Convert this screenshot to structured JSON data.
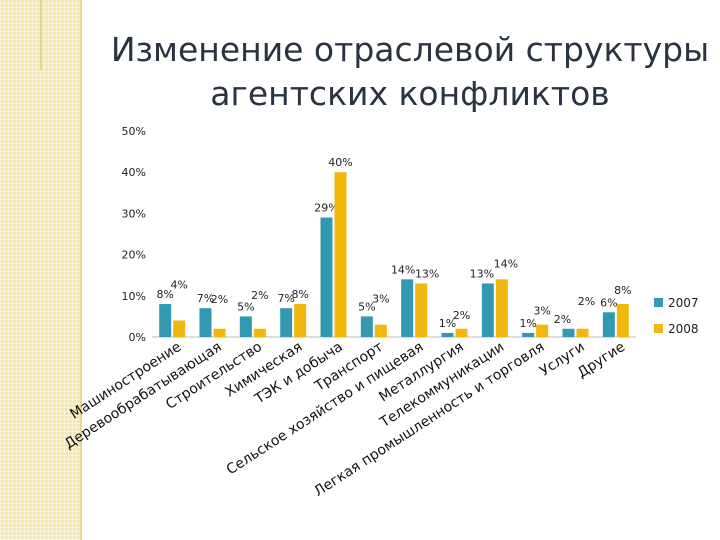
{
  "page": {
    "title_line1": "Изменение отраслевой структуры",
    "title_line2": "агентских конфликтов"
  },
  "colors": {
    "series_2007": "#3399b3",
    "series_2008": "#f2b70f",
    "strip": "#efe7b4"
  },
  "chart_data": {
    "type": "bar",
    "title": "Изменение отраслевой структуры агентских конфликтов",
    "ylim": [
      0,
      50
    ],
    "yticks": [
      "0%",
      "10%",
      "20%",
      "30%",
      "40%",
      "50%"
    ],
    "categories": [
      "Машиностроение",
      "Деревообрабатывающая",
      "Строительство",
      "Химическая",
      "ТЭК и добыча",
      "Транспорт",
      "Сельское хозяйство и пищевая",
      "Металлургия",
      "Телекоммуникации",
      "Легкая промышленность и торговля",
      "Услуги",
      "Другие"
    ],
    "series": [
      {
        "name": "2007",
        "values": [
          8,
          7,
          5,
          7,
          29,
          5,
          14,
          1,
          13,
          1,
          2,
          6
        ],
        "labels": [
          "8%",
          "7%",
          "5%",
          "7%",
          "29%",
          "5%",
          "14%",
          "1%",
          "13%",
          "1%",
          "2%",
          "6%"
        ]
      },
      {
        "name": "2008",
        "values": [
          4,
          2,
          2,
          8,
          40,
          3,
          13,
          2,
          14,
          3,
          2,
          8
        ],
        "labels": [
          "4%",
          "2%",
          "2%",
          "8%",
          "40%",
          "3%",
          "13%",
          "2%",
          "14%",
          "3%",
          "2%",
          "8%"
        ]
      }
    ],
    "legend": [
      "2007",
      "2008"
    ],
    "legend_position": "right"
  }
}
